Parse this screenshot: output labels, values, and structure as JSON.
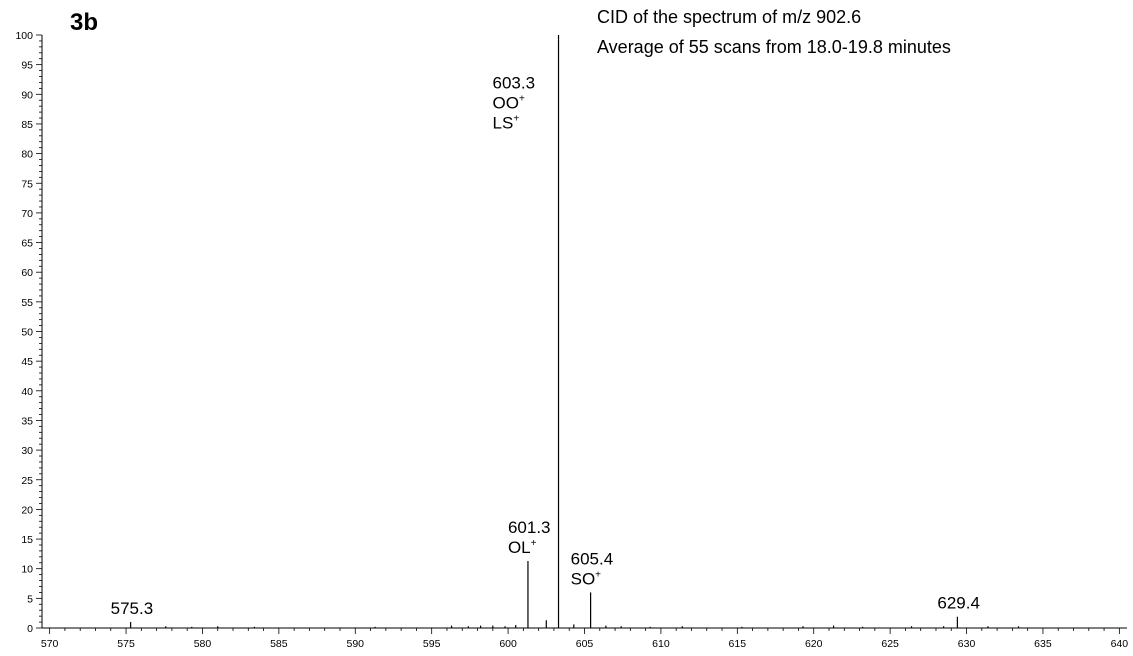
{
  "chart_data": {
    "type": "bar",
    "panel_label": "3b",
    "title_lines": [
      "CID of the spectrum  of m/z 902.6",
      "Average of 55 scans from 18.0-19.8 minutes"
    ],
    "xlim": [
      569.5,
      640.5
    ],
    "ylim": [
      0,
      100
    ],
    "x_ticks": [
      570,
      575,
      580,
      585,
      590,
      595,
      600,
      605,
      610,
      615,
      620,
      625,
      630,
      635,
      640
    ],
    "y_ticks": [
      0,
      5,
      10,
      15,
      20,
      25,
      30,
      35,
      40,
      45,
      50,
      55,
      60,
      65,
      70,
      75,
      80,
      85,
      90,
      95,
      100
    ],
    "peaks": [
      {
        "mz": 575.3,
        "intensity": 1.0
      },
      {
        "mz": 577.6,
        "intensity": 0.3
      },
      {
        "mz": 579.3,
        "intensity": 0.2
      },
      {
        "mz": 581.0,
        "intensity": 0.3
      },
      {
        "mz": 583.4,
        "intensity": 0.2
      },
      {
        "mz": 591.3,
        "intensity": 0.2
      },
      {
        "mz": 596.3,
        "intensity": 0.4
      },
      {
        "mz": 597.4,
        "intensity": 0.3
      },
      {
        "mz": 598.2,
        "intensity": 0.4
      },
      {
        "mz": 599.0,
        "intensity": 0.4
      },
      {
        "mz": 599.8,
        "intensity": 0.3
      },
      {
        "mz": 600.5,
        "intensity": 0.5
      },
      {
        "mz": 601.3,
        "intensity": 11.3
      },
      {
        "mz": 602.5,
        "intensity": 1.3
      },
      {
        "mz": 603.3,
        "intensity": 100.0
      },
      {
        "mz": 604.3,
        "intensity": 0.6
      },
      {
        "mz": 605.4,
        "intensity": 6.0
      },
      {
        "mz": 606.4,
        "intensity": 0.4
      },
      {
        "mz": 607.4,
        "intensity": 0.3
      },
      {
        "mz": 609.3,
        "intensity": 0.2
      },
      {
        "mz": 611.4,
        "intensity": 0.3
      },
      {
        "mz": 615.3,
        "intensity": 0.2
      },
      {
        "mz": 619.3,
        "intensity": 0.3
      },
      {
        "mz": 621.3,
        "intensity": 0.4
      },
      {
        "mz": 623.2,
        "intensity": 0.2
      },
      {
        "mz": 626.4,
        "intensity": 0.3
      },
      {
        "mz": 628.5,
        "intensity": 0.3
      },
      {
        "mz": 629.4,
        "intensity": 1.9
      },
      {
        "mz": 631.4,
        "intensity": 0.3
      },
      {
        "mz": 633.4,
        "intensity": 0.3
      }
    ],
    "annotations": [
      {
        "mz": 575.3,
        "lines": [
          {
            "text": "575.3",
            "sup": ""
          }
        ]
      },
      {
        "mz": 601.3,
        "lines": [
          {
            "text": "601.3",
            "sup": ""
          },
          {
            "text": "OL",
            "sup": "+"
          }
        ]
      },
      {
        "mz": 603.3,
        "lines": [
          {
            "text": "603.3",
            "sup": ""
          },
          {
            "text": "OO",
            "sup": "+"
          },
          {
            "text": "LS",
            "sup": "+"
          }
        ]
      },
      {
        "mz": 605.4,
        "lines": [
          {
            "text": "605.4",
            "sup": ""
          },
          {
            "text": "SO",
            "sup": "+"
          }
        ]
      },
      {
        "mz": 629.4,
        "lines": [
          {
            "text": "629.4",
            "sup": ""
          }
        ]
      }
    ],
    "grid": false,
    "colors": {
      "line": "#000000",
      "background": "#ffffff"
    }
  }
}
